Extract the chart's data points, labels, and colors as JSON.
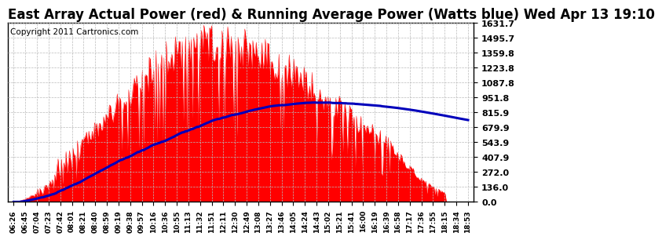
{
  "title": "East Array Actual Power (red) & Running Average Power (Watts blue) Wed Apr 13 19:10",
  "copyright": "Copyright 2011 Cartronics.com",
  "yticks": [
    0.0,
    136.0,
    272.0,
    407.9,
    543.9,
    679.9,
    815.9,
    951.8,
    1087.8,
    1223.8,
    1359.8,
    1495.7,
    1631.7
  ],
  "ylim": [
    0.0,
    1631.7
  ],
  "bar_color": "#ff0000",
  "avg_color": "#0000bb",
  "bg_color": "#ffffff",
  "grid_color": "#bbbbbb",
  "title_fontsize": 12,
  "copyright_fontsize": 7.5,
  "xtick_fontsize": 6.5,
  "ytick_fontsize": 8,
  "xtick_labels": [
    "06:26",
    "06:45",
    "07:04",
    "07:23",
    "07:42",
    "08:01",
    "08:21",
    "08:40",
    "08:59",
    "09:19",
    "09:38",
    "09:57",
    "10:16",
    "10:36",
    "10:55",
    "11:13",
    "11:32",
    "11:51",
    "12:11",
    "12:30",
    "12:49",
    "13:08",
    "13:27",
    "13:46",
    "14:05",
    "14:24",
    "14:43",
    "15:02",
    "15:21",
    "15:41",
    "16:00",
    "16:19",
    "16:39",
    "16:58",
    "17:17",
    "17:36",
    "17:55",
    "18:15",
    "18:34",
    "18:53"
  ],
  "num_ticks": 40,
  "num_points": 400
}
